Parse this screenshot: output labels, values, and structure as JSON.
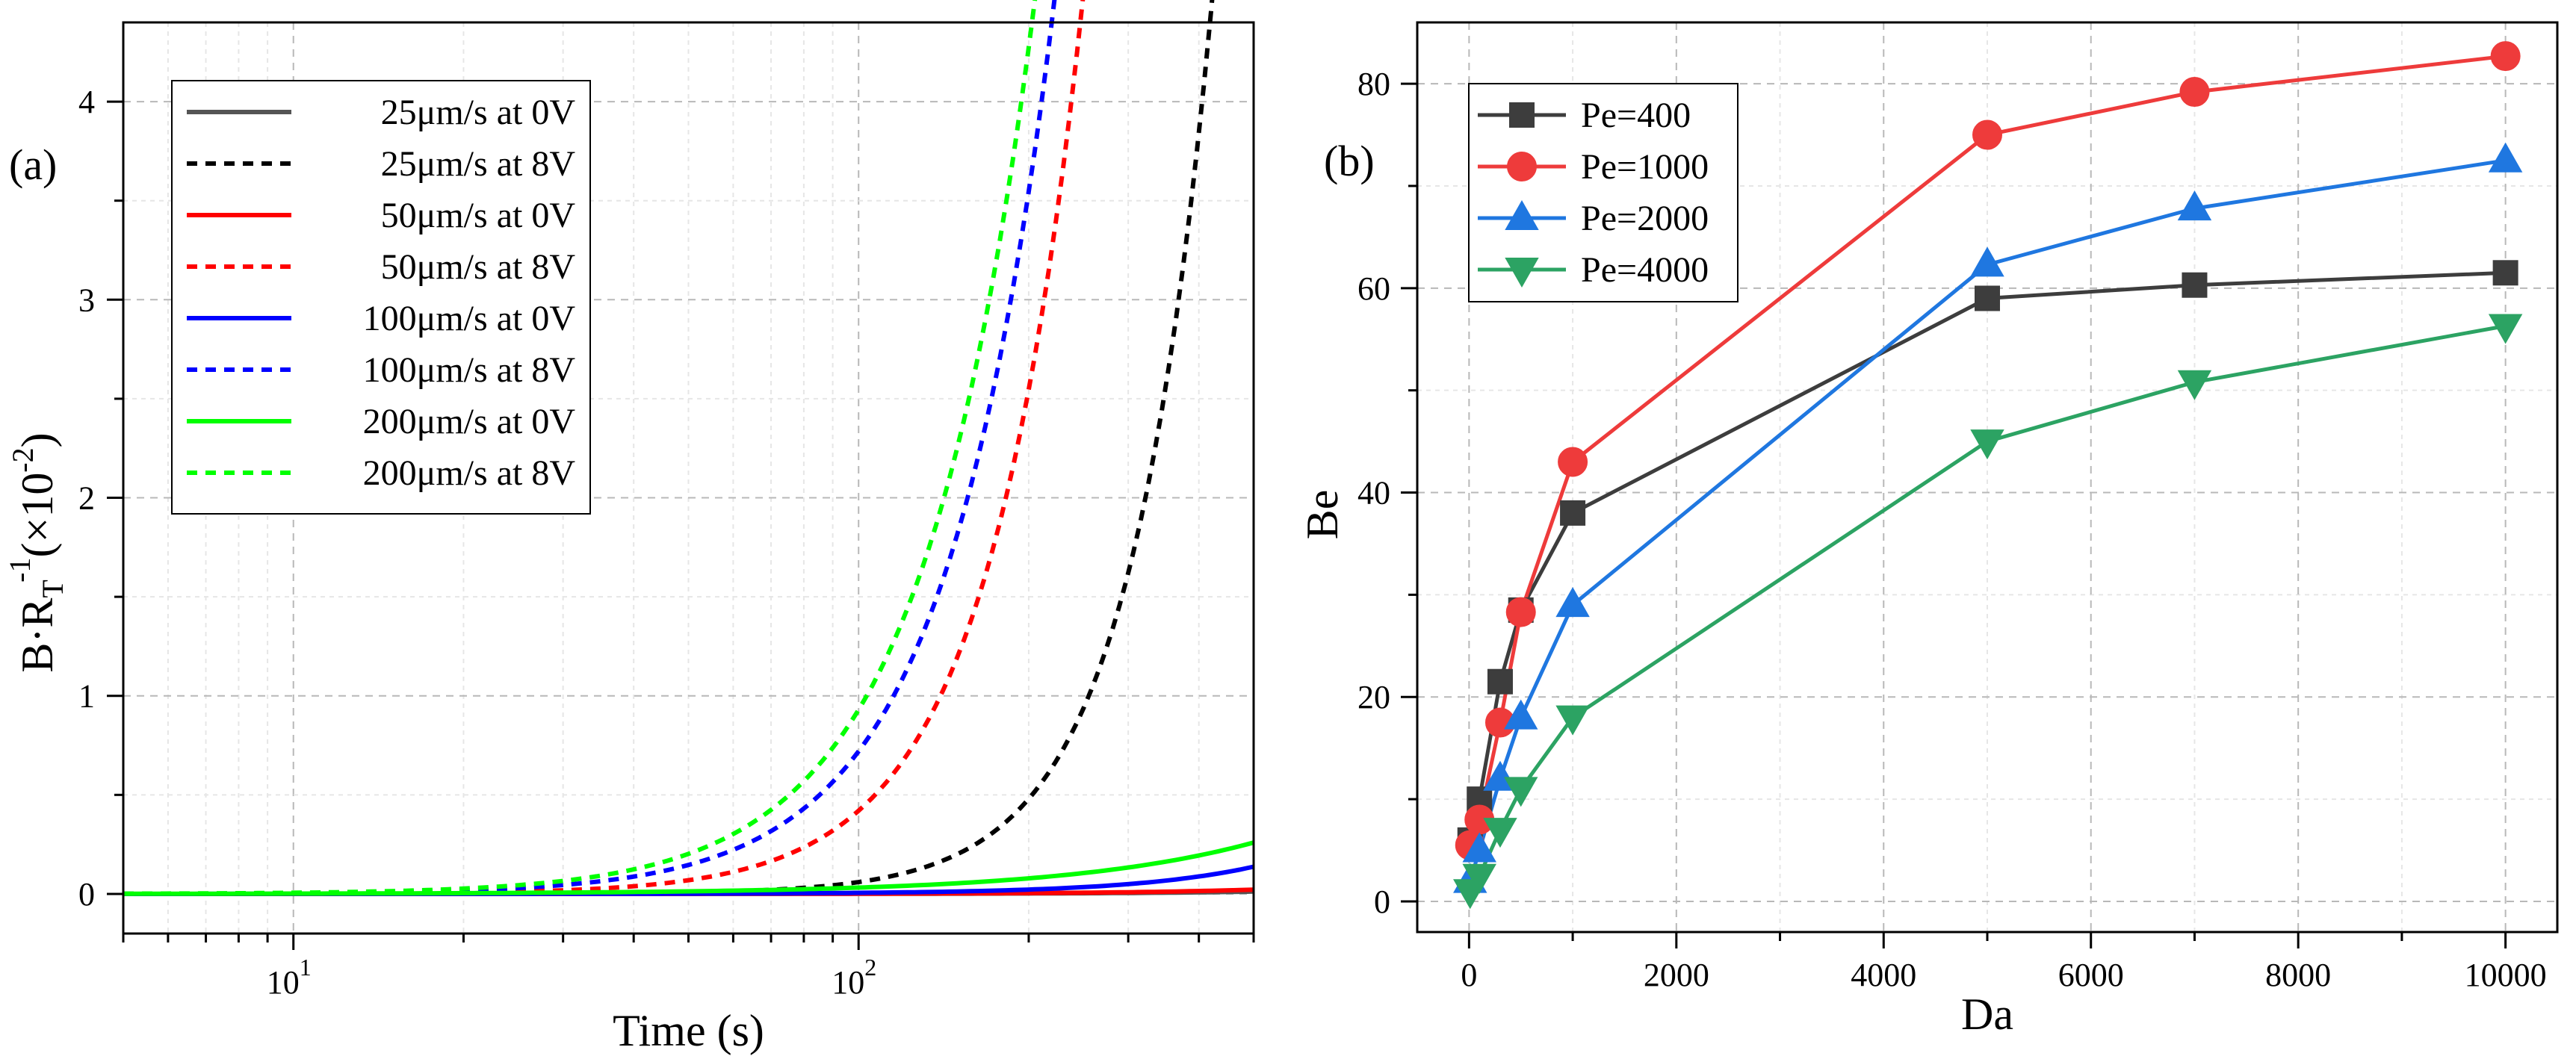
{
  "chart_data": [
    {
      "id": "a",
      "type": "line",
      "panel_label": "(a)",
      "xscale": "log",
      "xlim": [
        5,
        500
      ],
      "ylim": [
        -0.2,
        4.4
      ],
      "xlabel": "Time (s)",
      "ylabel_parts": {
        "main": "B·R",
        "sub": "T",
        "sup": "-1",
        "tail": "(×10",
        "tail_sup": "-2",
        "close": ")"
      },
      "x_ticks": [
        {
          "value": 10,
          "base": "10",
          "exp": "1"
        },
        {
          "value": 100,
          "base": "10",
          "exp": "2"
        }
      ],
      "y_ticks": [
        0,
        1,
        2,
        3,
        4
      ],
      "legend_position": "top-left",
      "series": [
        {
          "name": "25μm/s at 0V",
          "color": "#555555",
          "dash": "solid",
          "a": 0.00065,
          "k": 1.8
        },
        {
          "name": "25μm/s at 8V",
          "color": "#000000",
          "dash": "dashed",
          "a": 0.06,
          "k": 3.0
        },
        {
          "name": "50μm/s at 0V",
          "color": "#ff0000",
          "dash": "solid",
          "a": 0.0012,
          "k": 1.8
        },
        {
          "name": "50μm/s at 8V",
          "color": "#ff0000",
          "dash": "dashed",
          "a": 0.42,
          "k": 2.6
        },
        {
          "name": "100μm/s at 0V",
          "color": "#0000ff",
          "dash": "solid",
          "a": 0.0055,
          "k": 2.0
        },
        {
          "name": "100μm/s at 8V",
          "color": "#0000ff",
          "dash": "dashed",
          "a": 0.72,
          "k": 2.3
        },
        {
          "name": "200μm/s at 0V",
          "color": "#00ff00",
          "dash": "solid",
          "a": 0.032,
          "k": 1.3
        },
        {
          "name": "200μm/s at 8V",
          "color": "#00ff00",
          "dash": "dashed",
          "a": 0.93,
          "k": 2.2
        }
      ]
    },
    {
      "id": "b",
      "type": "line",
      "panel_label": "(b)",
      "xlim": [
        -500,
        10500
      ],
      "ylim": [
        -3,
        86
      ],
      "xlabel": "Da",
      "ylabel": "Be",
      "x_ticks": [
        0,
        2000,
        4000,
        6000,
        8000,
        10000
      ],
      "y_ticks": [
        0,
        20,
        40,
        60,
        80
      ],
      "legend_position": "top-left",
      "x": [
        10,
        100,
        300,
        500,
        1000,
        5000,
        7000,
        10000
      ],
      "series": [
        {
          "name": "Pe=400",
          "color": "#3d3d3d",
          "marker": "square",
          "values": [
            6,
            10,
            21.5,
            28.5,
            38,
            59,
            60.3,
            61.5
          ]
        },
        {
          "name": "Pe=1000",
          "color": "#ee3b3b",
          "marker": "circle",
          "values": [
            5.5,
            8,
            17.5,
            28.3,
            43,
            75,
            79.2,
            82.7
          ]
        },
        {
          "name": "Pe=2000",
          "color": "#1f77e0",
          "marker": "triangle-up",
          "values": [
            2,
            5,
            12,
            18,
            29,
            62.3,
            67.8,
            72.5
          ]
        },
        {
          "name": "Pe=4000",
          "color": "#2ca363",
          "marker": "triangle-down",
          "values": [
            1,
            2.5,
            7,
            11,
            18,
            45,
            50.8,
            56.3
          ]
        }
      ]
    }
  ]
}
